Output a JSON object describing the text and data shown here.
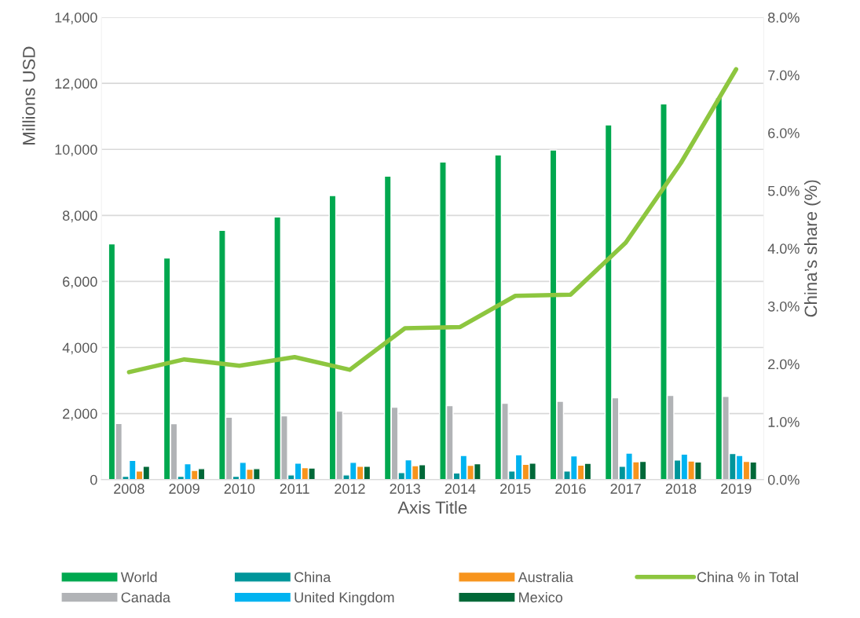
{
  "chart_data": {
    "type": "bar",
    "xlabel": "Axis Title",
    "ylabel": "Millions USD",
    "y2label": "China’s share (%)",
    "categories": [
      "2008",
      "2009",
      "2010",
      "2011",
      "2012",
      "2013",
      "2014",
      "2015",
      "2016",
      "2017",
      "2018",
      "2019"
    ],
    "series": [
      {
        "name": "World",
        "color": "#00a84f",
        "values": [
          7140,
          6710,
          7550,
          7950,
          8600,
          9190,
          9620,
          9830,
          9980,
          10740,
          11380,
          11570
        ]
      },
      {
        "name": "Canada",
        "color": "#b1b3b6",
        "values": [
          1700,
          1690,
          1890,
          1930,
          2070,
          2190,
          2240,
          2310,
          2370,
          2480,
          2550,
          2520
        ]
      },
      {
        "name": "China",
        "color": "#00959a",
        "values": [
          100,
          100,
          100,
          140,
          140,
          210,
          200,
          260,
          260,
          400,
          590,
          790
        ]
      },
      {
        "name": "United Kingdom",
        "color": "#00b3f0",
        "values": [
          580,
          480,
          520,
          500,
          520,
          600,
          730,
          750,
          720,
          800,
          770,
          730
        ]
      },
      {
        "name": "Australia",
        "color": "#f7941d",
        "values": [
          260,
          280,
          310,
          360,
          400,
          420,
          430,
          460,
          440,
          540,
          560,
          550
        ]
      },
      {
        "name": "Mexico",
        "color": "#006838",
        "values": [
          400,
          330,
          330,
          350,
          400,
          450,
          480,
          500,
          490,
          550,
          530,
          530
        ]
      },
      {
        "name": "China % in Total",
        "type": "line",
        "axis": "y2",
        "color": "#8dc63f",
        "values": [
          1.86,
          2.08,
          1.97,
          2.12,
          1.9,
          2.62,
          2.64,
          3.18,
          3.2,
          4.1,
          5.48,
          7.1
        ]
      }
    ],
    "ylim": [
      0,
      14000
    ],
    "yticks": [
      {
        "value": 0,
        "label": "0"
      },
      {
        "value": 2000,
        "label": "2,000"
      },
      {
        "value": 4000,
        "label": "4,000"
      },
      {
        "value": 6000,
        "label": "6,000"
      },
      {
        "value": 8000,
        "label": "8,000"
      },
      {
        "value": 10000,
        "label": "10,000"
      },
      {
        "value": 12000,
        "label": "12,000"
      },
      {
        "value": 14000,
        "label": "14,000"
      }
    ],
    "y2lim": [
      0,
      8
    ],
    "y2ticks": [
      {
        "value": 0,
        "label": "0.0%"
      },
      {
        "value": 1,
        "label": "1.0%"
      },
      {
        "value": 2,
        "label": "2.0%"
      },
      {
        "value": 3,
        "label": "3.0%"
      },
      {
        "value": 4,
        "label": "4.0%"
      },
      {
        "value": 5,
        "label": "5.0%"
      },
      {
        "value": 6,
        "label": "6.0%"
      },
      {
        "value": 7,
        "label": "7.0%"
      },
      {
        "value": 8,
        "label": "8.0%"
      }
    ],
    "grid": "y",
    "legend": "bottom",
    "marker": "none"
  }
}
